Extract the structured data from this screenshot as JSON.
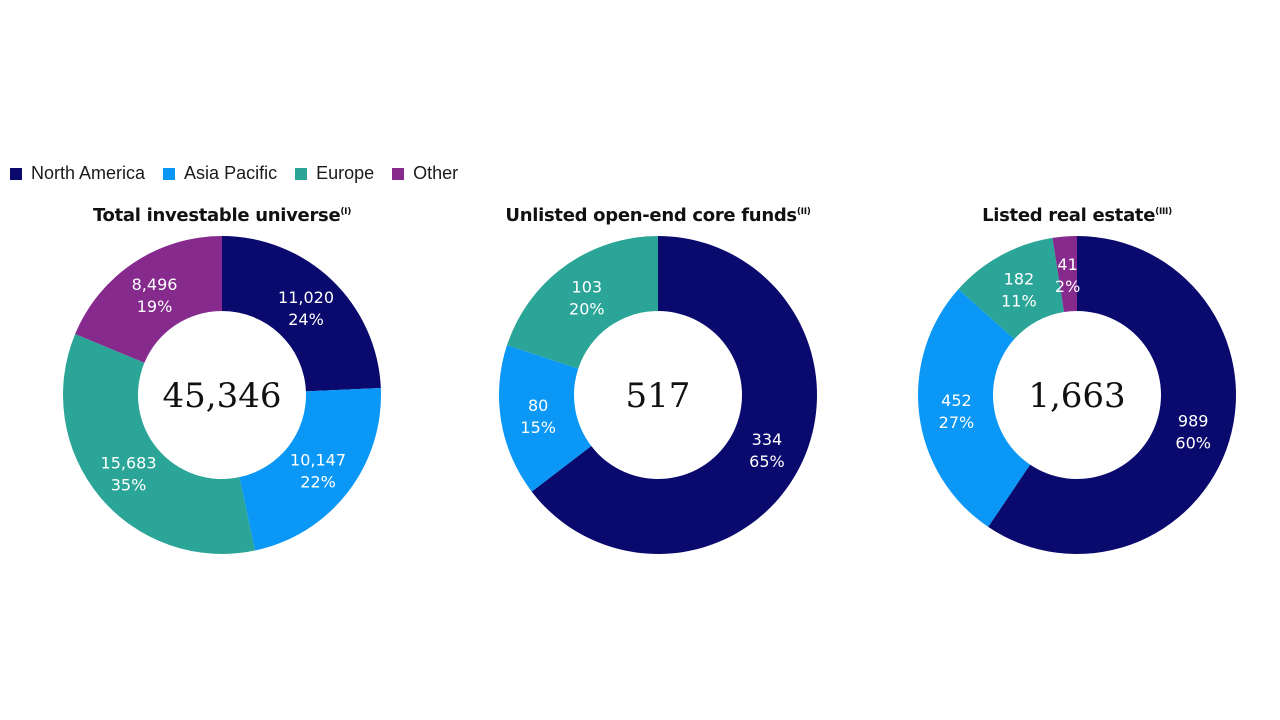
{
  "legend": [
    {
      "label": "North America",
      "color": "#0a0a6e"
    },
    {
      "label": "Asia Pacific",
      "color": "#0b97f5"
    },
    {
      "label": "Europe",
      "color": "#2aa597"
    },
    {
      "label": "Other",
      "color": "#862a8e"
    }
  ],
  "chart_data": [
    {
      "type": "pie",
      "title": "Total investable universe",
      "note": "(I)",
      "total": "45,346",
      "slices": [
        {
          "name": "North America",
          "value": 11020,
          "value_label": "11,020",
          "pct_label": "24%",
          "color": "#0a0a6e"
        },
        {
          "name": "Asia Pacific",
          "value": 10147,
          "value_label": "10,147",
          "pct_label": "22%",
          "color": "#0b97f5"
        },
        {
          "name": "Europe",
          "value": 15683,
          "value_label": "15,683",
          "pct_label": "35%",
          "color": "#2aa597"
        },
        {
          "name": "Other",
          "value": 8496,
          "value_label": "8,496",
          "pct_label": "19%",
          "color": "#862a8e"
        }
      ]
    },
    {
      "type": "pie",
      "title": "Unlisted open-end core funds",
      "note": "(II)",
      "total": "517",
      "slices": [
        {
          "name": "North America",
          "value": 334,
          "value_label": "334",
          "pct_label": "65%",
          "color": "#0a0a6e"
        },
        {
          "name": "Asia Pacific",
          "value": 80,
          "value_label": "80",
          "pct_label": "15%",
          "color": "#0b97f5"
        },
        {
          "name": "Europe",
          "value": 103,
          "value_label": "103",
          "pct_label": "20%",
          "color": "#2aa597"
        }
      ]
    },
    {
      "type": "pie",
      "title": "Listed real estate",
      "note": "(III)",
      "total": "1,663",
      "slices": [
        {
          "name": "North America",
          "value": 989,
          "value_label": "989",
          "pct_label": "60%",
          "color": "#0a0a6e"
        },
        {
          "name": "Asia Pacific",
          "value": 452,
          "value_label": "452",
          "pct_label": "27%",
          "color": "#0b97f5"
        },
        {
          "name": "Europe",
          "value": 182,
          "value_label": "182",
          "pct_label": "11%",
          "color": "#2aa597"
        },
        {
          "name": "Other",
          "value": 41,
          "value_label": "41",
          "pct_label": "2%",
          "color": "#862a8e"
        }
      ]
    }
  ]
}
